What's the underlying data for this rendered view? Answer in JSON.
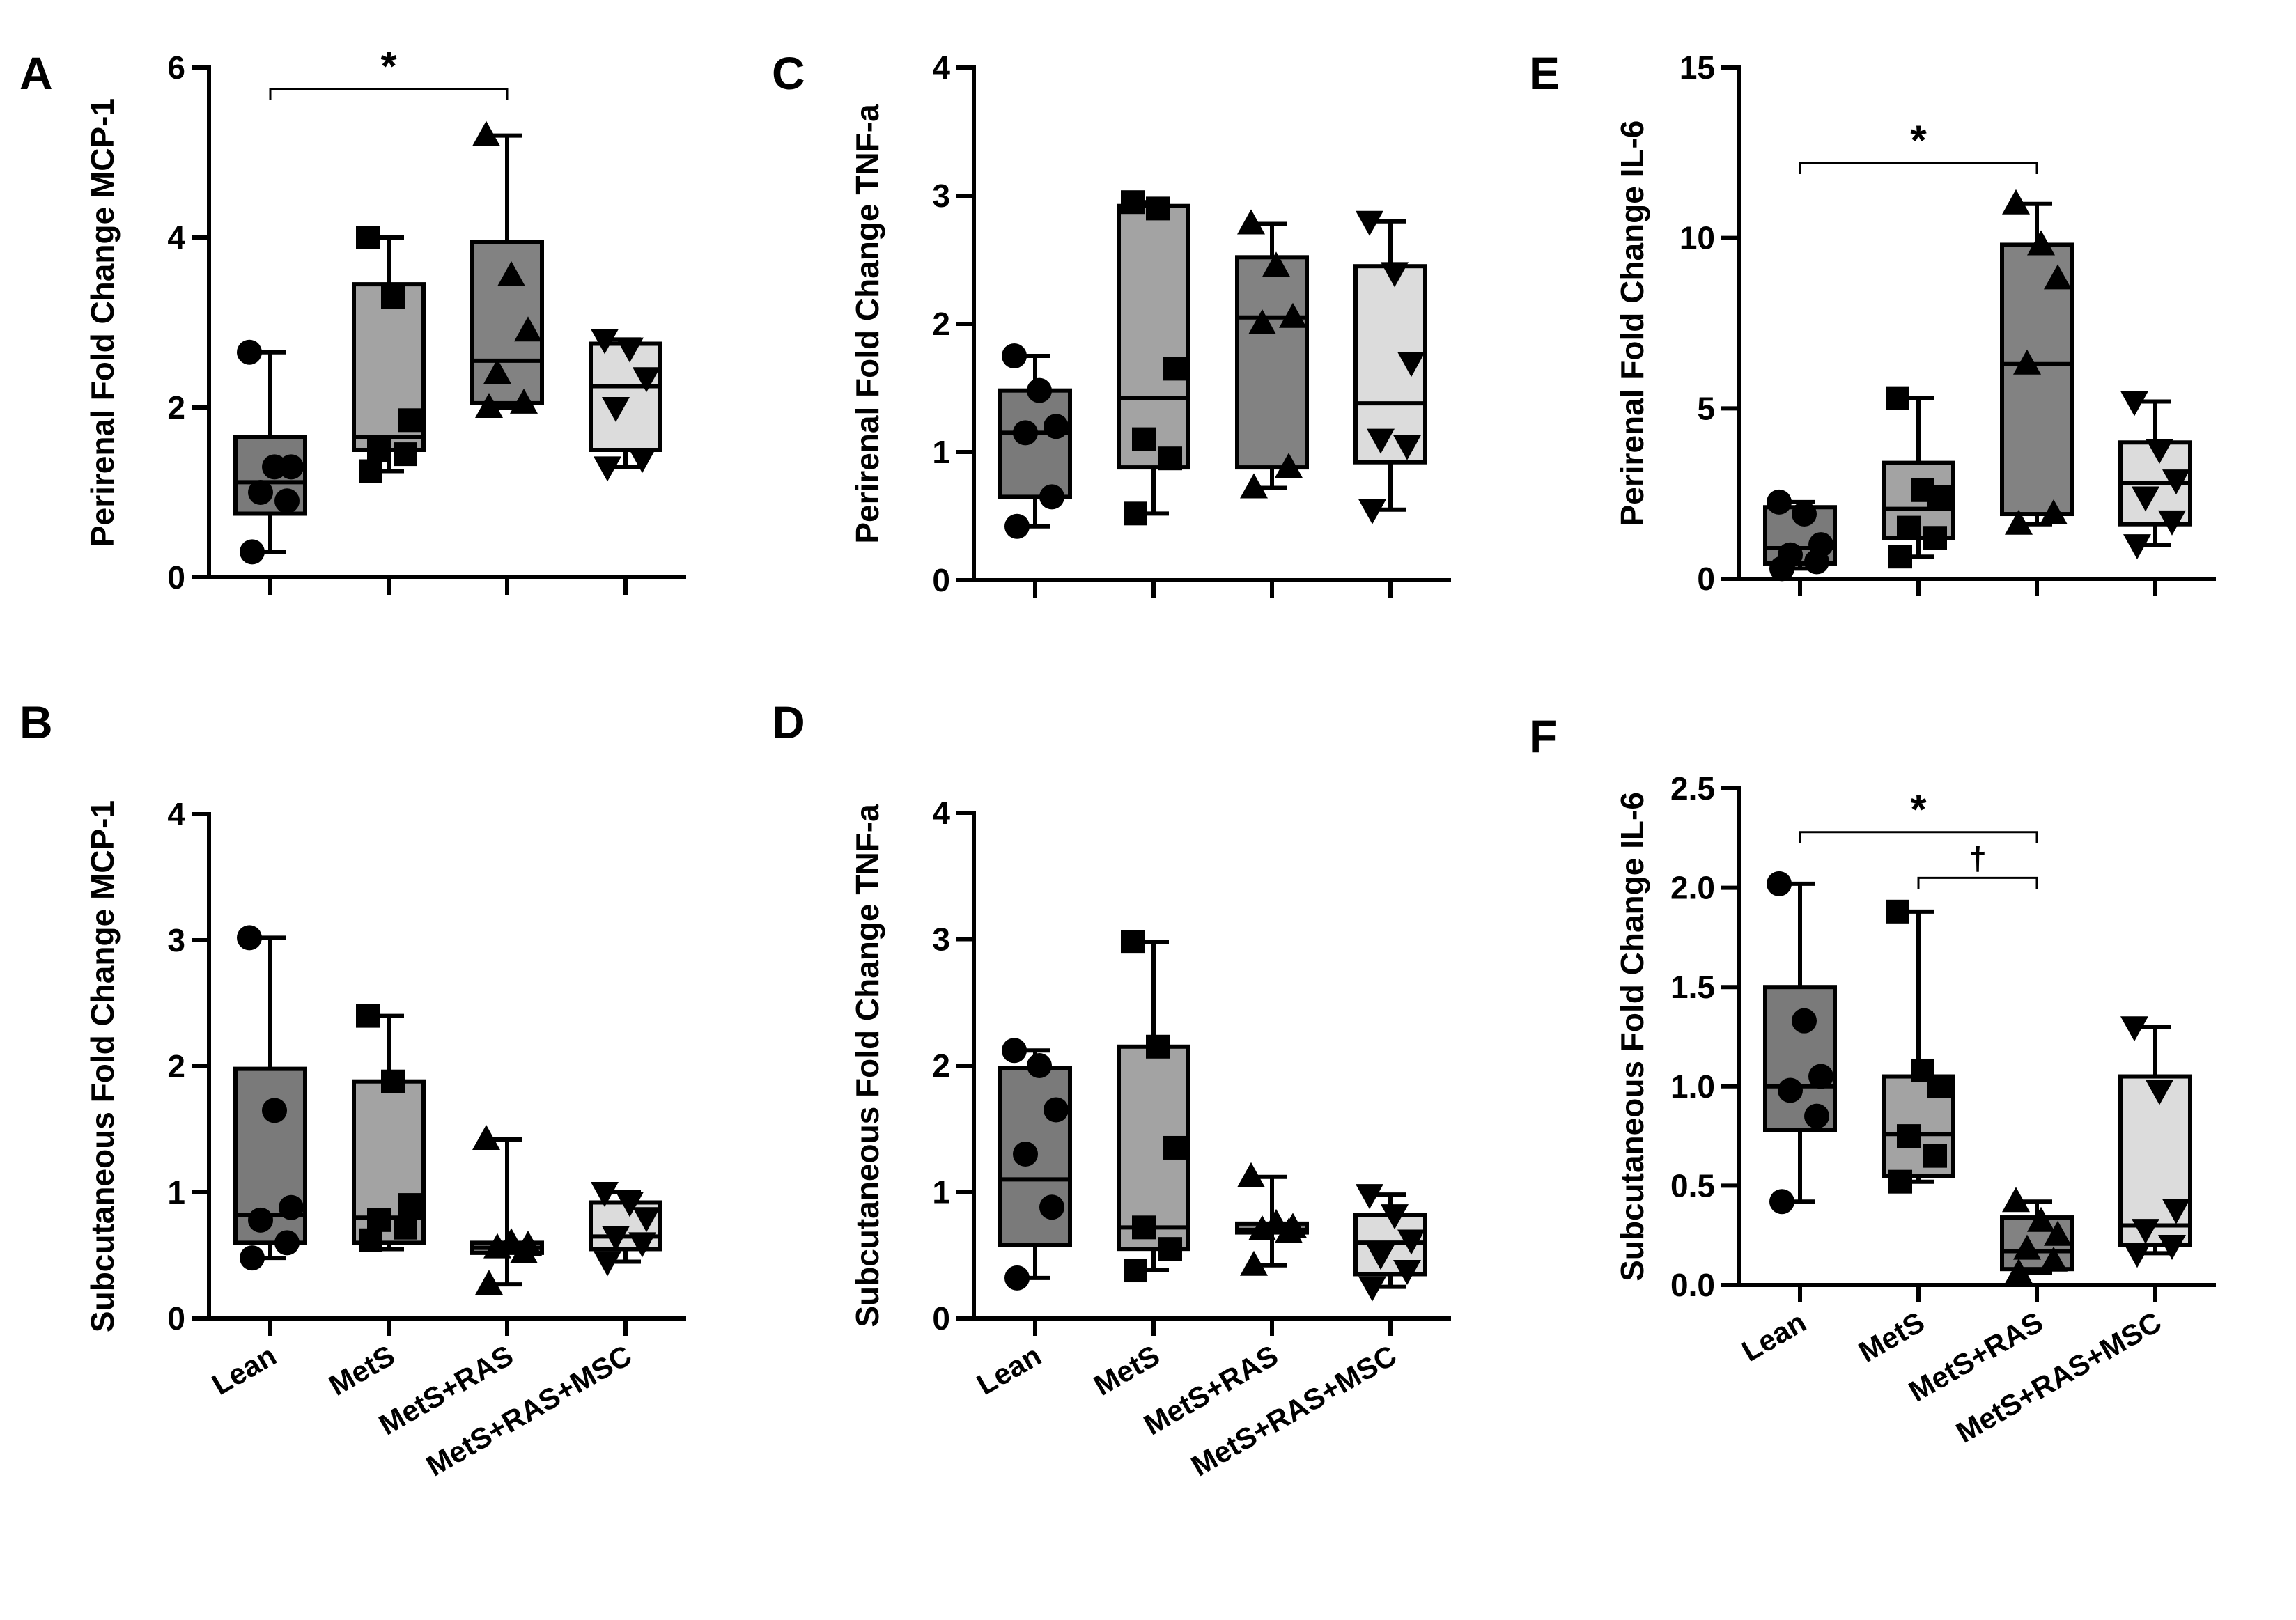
{
  "colors": {
    "Lean": "#7a7a7a",
    "MetS": "#a3a3a3",
    "MetS+RAS": "#828282",
    "MetS+RAS+MSC": "#dcdcdc"
  },
  "chart_data": [
    {
      "panel": "A",
      "type": "box",
      "ylabel": "Perirenal Fold Change MCP-1",
      "ylim": [
        0,
        6
      ],
      "yticks": [
        "0",
        "2",
        "4",
        "6"
      ],
      "categories": [
        "Lean",
        "MetS",
        "MetS+RAS",
        "MetS+RAS+MSC"
      ],
      "show_xlabels": false,
      "boxes": [
        {
          "group": "Lean",
          "min": 0.3,
          "q1": 0.75,
          "median": 1.12,
          "q3": 1.65,
          "max": 2.65,
          "points": [
            0.3,
            0.9,
            1.0,
            1.3,
            1.3,
            2.65
          ],
          "marker": "circle"
        },
        {
          "group": "MetS",
          "min": 1.25,
          "q1": 1.5,
          "median": 1.65,
          "q3": 3.45,
          "max": 4.0,
          "points": [
            1.25,
            1.45,
            1.5,
            1.85,
            3.3,
            4.0
          ],
          "marker": "square"
        },
        {
          "group": "MetS+RAS",
          "min": 2.0,
          "q1": 2.05,
          "median": 2.55,
          "q3": 3.95,
          "max": 5.2,
          "points": [
            2.0,
            2.05,
            2.4,
            2.9,
            3.55,
            5.2
          ],
          "marker": "triangle-up"
        },
        {
          "group": "MetS+RAS+MSC",
          "min": 1.3,
          "q1": 1.5,
          "median": 2.25,
          "q3": 2.75,
          "max": 2.8,
          "points": [
            1.3,
            1.4,
            2.0,
            2.35,
            2.7,
            2.8
          ],
          "marker": "triangle-down"
        }
      ],
      "significance": [
        {
          "from": "Lean",
          "to": "MetS+RAS",
          "y": 5.75,
          "label": "*"
        }
      ]
    },
    {
      "panel": "B",
      "type": "box",
      "ylabel": "Subcutaneous Fold Change MCP-1",
      "ylim": [
        0,
        4
      ],
      "yticks": [
        "0",
        "1",
        "2",
        "3",
        "4"
      ],
      "categories": [
        "Lean",
        "MetS",
        "MetS+RAS",
        "MetS+RAS+MSC"
      ],
      "show_xlabels": true,
      "boxes": [
        {
          "group": "Lean",
          "min": 0.48,
          "q1": 0.6,
          "median": 0.82,
          "q3": 1.98,
          "max": 3.02,
          "points": [
            0.48,
            0.6,
            0.78,
            0.88,
            1.65,
            3.02
          ],
          "marker": "circle"
        },
        {
          "group": "MetS",
          "min": 0.55,
          "q1": 0.6,
          "median": 0.8,
          "q3": 1.88,
          "max": 2.4,
          "points": [
            0.62,
            0.72,
            0.78,
            0.9,
            1.88,
            2.4
          ],
          "marker": "square"
        },
        {
          "group": "MetS+RAS",
          "min": 0.27,
          "q1": 0.52,
          "median": 0.56,
          "q3": 0.6,
          "max": 1.42,
          "points": [
            0.27,
            0.52,
            0.56,
            0.58,
            0.6,
            1.42
          ],
          "marker": "triangle-up"
        },
        {
          "group": "MetS+RAS+MSC",
          "min": 0.45,
          "q1": 0.55,
          "median": 0.65,
          "q3": 0.92,
          "max": 1.0,
          "points": [
            0.45,
            0.6,
            0.65,
            0.8,
            0.92,
            1.0
          ],
          "marker": "triangle-down"
        }
      ],
      "significance": []
    },
    {
      "panel": "C",
      "type": "box",
      "ylabel": "Perirenal Fold Change TNF-a",
      "ylim": [
        0,
        4
      ],
      "yticks": [
        "0",
        "1",
        "2",
        "3",
        "4"
      ],
      "categories": [
        "Lean",
        "MetS",
        "MetS+RAS",
        "MetS+RAS+MSC"
      ],
      "show_xlabels": false,
      "boxes": [
        {
          "group": "Lean",
          "min": 0.42,
          "q1": 0.65,
          "median": 1.15,
          "q3": 1.48,
          "max": 1.75,
          "points": [
            0.42,
            0.65,
            1.15,
            1.2,
            1.48,
            1.75
          ],
          "marker": "circle"
        },
        {
          "group": "MetS",
          "min": 0.52,
          "q1": 0.88,
          "median": 1.42,
          "q3": 2.92,
          "max": 2.95,
          "points": [
            0.52,
            0.95,
            1.1,
            1.65,
            2.9,
            2.95
          ],
          "marker": "square"
        },
        {
          "group": "MetS+RAS",
          "min": 0.72,
          "q1": 0.88,
          "median": 2.05,
          "q3": 2.52,
          "max": 2.78,
          "points": [
            0.72,
            0.88,
            2.0,
            2.05,
            2.45,
            2.78
          ],
          "marker": "triangle-up"
        },
        {
          "group": "MetS+RAS+MSC",
          "min": 0.55,
          "q1": 0.92,
          "median": 1.38,
          "q3": 2.45,
          "max": 2.8,
          "points": [
            0.55,
            1.05,
            1.1,
            1.7,
            2.4,
            2.8
          ],
          "marker": "triangle-down"
        }
      ],
      "significance": []
    },
    {
      "panel": "D",
      "type": "box",
      "ylabel": "Subcutaneous Fold Change TNF-a",
      "ylim": [
        0,
        4
      ],
      "yticks": [
        "0",
        "1",
        "2",
        "3",
        "4"
      ],
      "categories": [
        "Lean",
        "MetS",
        "MetS+RAS",
        "MetS+RAS+MSC"
      ],
      "show_xlabels": true,
      "boxes": [
        {
          "group": "Lean",
          "min": 0.32,
          "q1": 0.58,
          "median": 1.1,
          "q3": 1.98,
          "max": 2.12,
          "points": [
            0.32,
            0.88,
            1.3,
            1.65,
            2.0,
            2.12
          ],
          "marker": "circle"
        },
        {
          "group": "MetS",
          "min": 0.38,
          "q1": 0.55,
          "median": 0.72,
          "q3": 2.15,
          "max": 2.98,
          "points": [
            0.38,
            0.55,
            0.72,
            1.35,
            2.15,
            2.98
          ],
          "marker": "square"
        },
        {
          "group": "MetS+RAS",
          "min": 0.42,
          "q1": 0.68,
          "median": 0.7,
          "q3": 0.75,
          "max": 1.12,
          "points": [
            0.42,
            0.68,
            0.7,
            0.72,
            0.75,
            1.12
          ],
          "marker": "triangle-up"
        },
        {
          "group": "MetS+RAS+MSC",
          "min": 0.25,
          "q1": 0.35,
          "median": 0.6,
          "q3": 0.82,
          "max": 0.98,
          "points": [
            0.25,
            0.38,
            0.5,
            0.62,
            0.82,
            0.98
          ],
          "marker": "triangle-down"
        }
      ],
      "significance": []
    },
    {
      "panel": "E",
      "type": "box",
      "ylabel": "Perirenal Fold Change IL-6",
      "ylim": [
        0,
        15
      ],
      "yticks": [
        "0",
        "5",
        "10",
        "15"
      ],
      "categories": [
        "Lean",
        "MetS",
        "MetS+RAS",
        "MetS+RAS+MSC"
      ],
      "show_xlabels": false,
      "boxes": [
        {
          "group": "Lean",
          "min": 0.3,
          "q1": 0.45,
          "median": 0.9,
          "q3": 2.1,
          "max": 2.25,
          "points": [
            0.3,
            0.5,
            0.7,
            1.0,
            1.9,
            2.25
          ],
          "marker": "circle"
        },
        {
          "group": "MetS",
          "min": 0.65,
          "q1": 1.2,
          "median": 2.05,
          "q3": 3.4,
          "max": 5.3,
          "points": [
            0.65,
            1.2,
            1.5,
            2.4,
            2.6,
            5.3
          ],
          "marker": "square"
        },
        {
          "group": "MetS+RAS",
          "min": 1.6,
          "q1": 1.9,
          "median": 6.3,
          "q3": 9.8,
          "max": 11.0,
          "points": [
            1.6,
            1.9,
            6.3,
            8.8,
            9.8,
            11.0
          ],
          "marker": "triangle-up"
        },
        {
          "group": "MetS+RAS+MSC",
          "min": 1.0,
          "q1": 1.6,
          "median": 2.8,
          "q3": 4.0,
          "max": 5.2,
          "points": [
            1.0,
            1.7,
            2.4,
            2.9,
            3.8,
            5.2
          ],
          "marker": "triangle-down"
        }
      ],
      "significance": [
        {
          "from": "Lean",
          "to": "MetS+RAS",
          "y": 12.2,
          "label": "*"
        }
      ]
    },
    {
      "panel": "F",
      "type": "box",
      "ylabel": "Subcutaneous Fold Change IL-6",
      "ylim": [
        0,
        2.5
      ],
      "yticks": [
        "0.0",
        "0.5",
        "1.0",
        "1.5",
        "2.0",
        "2.5"
      ],
      "categories": [
        "Lean",
        "MetS",
        "MetS+RAS",
        "MetS+RAS+MSC"
      ],
      "show_xlabels": true,
      "boxes": [
        {
          "group": "Lean",
          "min": 0.42,
          "q1": 0.78,
          "median": 1.0,
          "q3": 1.5,
          "max": 2.02,
          "points": [
            0.42,
            0.85,
            0.98,
            1.05,
            1.33,
            2.02
          ],
          "marker": "circle"
        },
        {
          "group": "MetS",
          "min": 0.52,
          "q1": 0.55,
          "median": 0.76,
          "q3": 1.05,
          "max": 1.88,
          "points": [
            0.52,
            0.65,
            0.75,
            1.0,
            1.08,
            1.88
          ],
          "marker": "square"
        },
        {
          "group": "MetS+RAS",
          "min": 0.06,
          "q1": 0.08,
          "median": 0.17,
          "q3": 0.34,
          "max": 0.42,
          "points": [
            0.06,
            0.12,
            0.18,
            0.25,
            0.32,
            0.42
          ],
          "marker": "triangle-up"
        },
        {
          "group": "MetS+RAS+MSC",
          "min": 0.16,
          "q1": 0.2,
          "median": 0.3,
          "q3": 1.05,
          "max": 1.3,
          "points": [
            0.16,
            0.2,
            0.28,
            0.38,
            0.98,
            1.3
          ],
          "marker": "triangle-down"
        }
      ],
      "significance": [
        {
          "from": "Lean",
          "to": "MetS+RAS",
          "y": 2.28,
          "label": "*"
        },
        {
          "from": "MetS",
          "to": "MetS+RAS",
          "y": 2.05,
          "label": "†"
        }
      ]
    }
  ]
}
